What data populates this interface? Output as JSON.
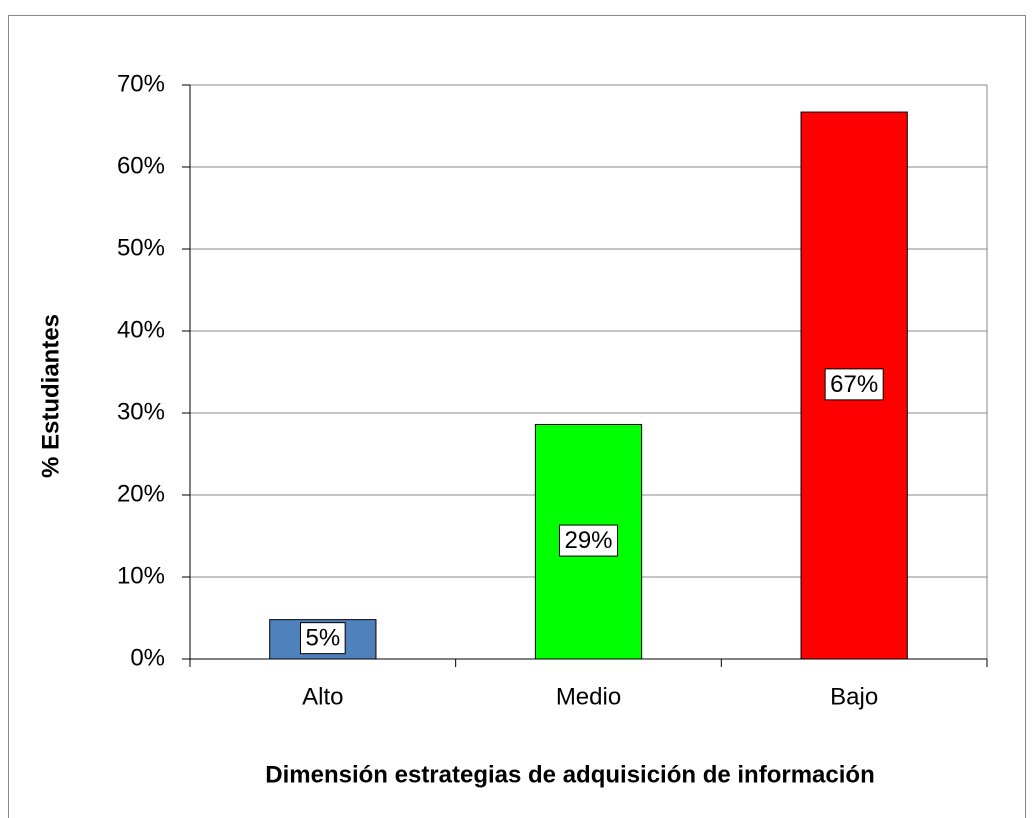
{
  "chart_data": {
    "type": "bar",
    "y_label": "% Estudiantes",
    "x_label": "Dimensión estrategias de adquisición de información",
    "categories": [
      "Alto",
      "Medio",
      "Bajo"
    ],
    "values": [
      4.8,
      28.6,
      66.7
    ],
    "value_labels": [
      "5%",
      "29%",
      "67%"
    ],
    "colors": [
      "#4f81bd",
      "#00ff00",
      "#ff0000"
    ],
    "ylim": [
      0,
      70
    ],
    "yticks": [
      {
        "value": 0,
        "label": "0%"
      },
      {
        "value": 10,
        "label": "10%"
      },
      {
        "value": 20,
        "label": "20%"
      },
      {
        "value": 30,
        "label": "30%"
      },
      {
        "value": 40,
        "label": "40%"
      },
      {
        "value": 50,
        "label": "50%"
      },
      {
        "value": 60,
        "label": "60%"
      },
      {
        "value": 70,
        "label": "70%"
      }
    ],
    "grid": true
  }
}
